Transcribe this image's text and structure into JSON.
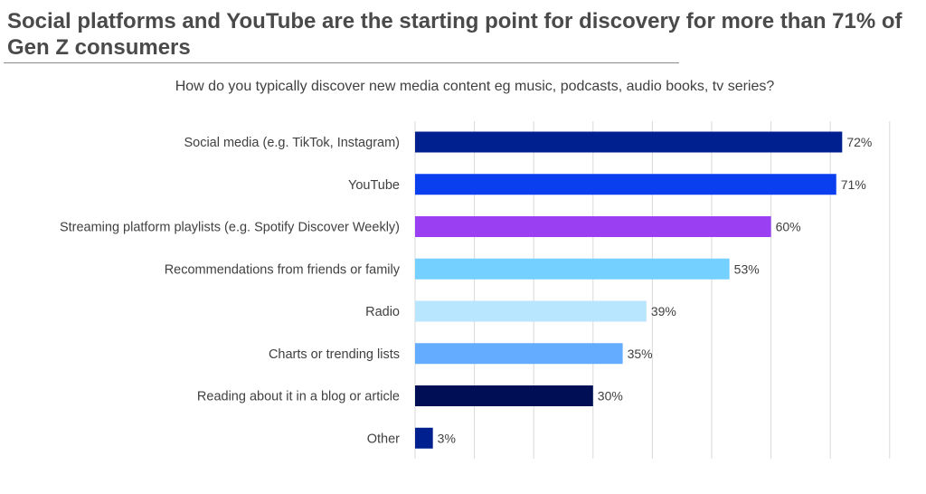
{
  "header": {
    "title": "Social platforms and YouTube are the starting point for discovery for more than 71% of Gen Z consumers"
  },
  "chart_data": {
    "type": "bar",
    "orientation": "horizontal",
    "title": "How do you typically discover new media content eg music, podcasts, audio books, tv series?",
    "xlabel": "",
    "ylabel": "",
    "xlim": [
      0,
      80
    ],
    "grid": true,
    "legend": "none",
    "categories": [
      "Social media (e.g. TikTok, Instagram)",
      "YouTube",
      "Streaming platform playlists (e.g. Spotify Discover Weekly)",
      "Recommendations from friends or family",
      "Radio",
      "Charts or trending lists",
      "Reading about it in a blog or article",
      "Other"
    ],
    "values": [
      72,
      71,
      60,
      53,
      39,
      35,
      30,
      3
    ],
    "value_labels": [
      "72%",
      "71%",
      "60%",
      "53%",
      "39%",
      "35%",
      "30%",
      "3%"
    ],
    "colors": [
      "#00208f",
      "#0a3ff0",
      "#9b3ff2",
      "#73d0ff",
      "#b8e6ff",
      "#64acff",
      "#000f55",
      "#00208f"
    ]
  }
}
